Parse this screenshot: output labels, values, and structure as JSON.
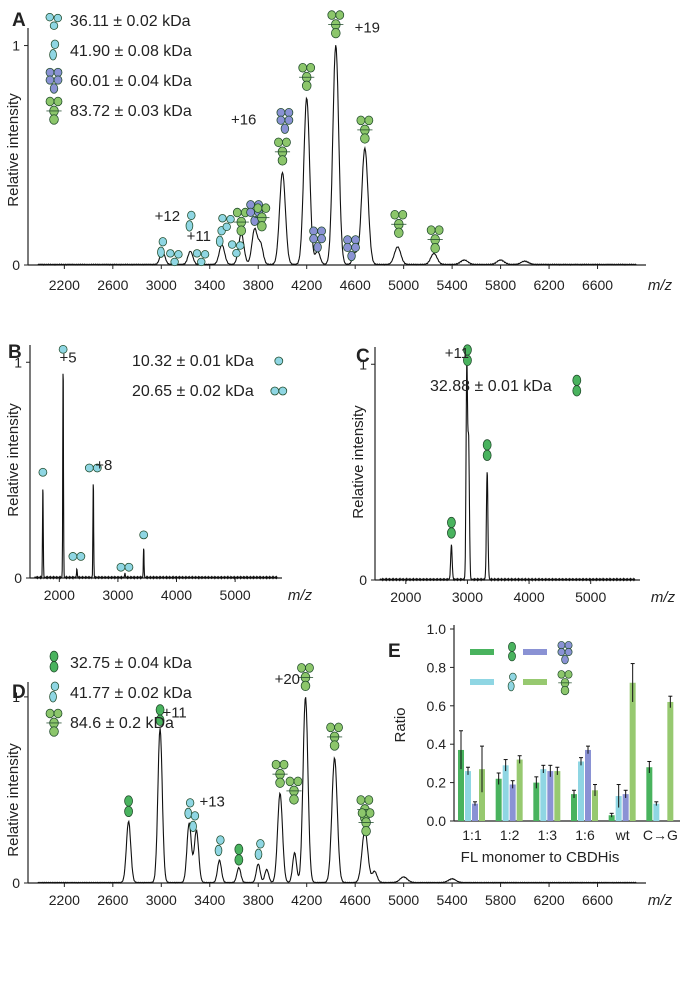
{
  "colors": {
    "cyan": "#8fd6e3",
    "green": "#8cc66b",
    "dark_green": "#49b35e",
    "purple": "#8a92d4",
    "axis": "#222222"
  },
  "chart_data": [
    {
      "panel": "A",
      "type": "line",
      "xlabel": "m/z",
      "ylabel": "Relative intensity",
      "xlim": [
        1900,
        7000
      ],
      "ylim": [
        0,
        1.08
      ],
      "xticks": [
        2200,
        2600,
        3000,
        3400,
        3800,
        4200,
        4600,
        5000,
        5400,
        5800,
        6200,
        6600
      ],
      "yticks": [
        {
          "v": 0,
          "label": "0"
        },
        {
          "v": 1,
          "label": "1"
        }
      ],
      "legend": [
        {
          "text": "36.11 ± 0.02 kDa",
          "icon": "cyan-trimer"
        },
        {
          "text": "41.90 ± 0.08 kDa",
          "icon": "cyan-dimer"
        },
        {
          "text": "60.01 ± 0.04 kDa",
          "icon": "purple-tetramer"
        },
        {
          "text": "83.72 ± 0.03 kDa",
          "icon": "green-tetramer"
        }
      ],
      "peaks": [
        {
          "mz": 3010,
          "h": 0.06,
          "w": 20
        },
        {
          "mz": 3240,
          "h": 0.06,
          "w": 20
        },
        {
          "mz": 3500,
          "h": 0.09,
          "w": 22
        },
        {
          "mz": 3660,
          "h": 0.14,
          "w": 22
        },
        {
          "mz": 3770,
          "h": 0.16,
          "w": 22
        },
        {
          "mz": 3820,
          "h": 0.09,
          "w": 20
        },
        {
          "mz": 4000,
          "h": 0.42,
          "w": 24
        },
        {
          "mz": 4200,
          "h": 0.76,
          "w": 24
        },
        {
          "mz": 4290,
          "h": 0.06,
          "w": 20
        },
        {
          "mz": 4440,
          "h": 1.0,
          "w": 24
        },
        {
          "mz": 4600,
          "h": 0.05,
          "w": 20
        },
        {
          "mz": 4680,
          "h": 0.53,
          "w": 26
        },
        {
          "mz": 4950,
          "h": 0.08,
          "w": 26
        },
        {
          "mz": 5250,
          "h": 0.05,
          "w": 26
        },
        {
          "mz": 5500,
          "h": 0.02,
          "w": 30
        },
        {
          "mz": 5800,
          "h": 0.02,
          "w": 30
        },
        {
          "mz": 6000,
          "h": 0.015,
          "w": 30
        }
      ],
      "annotations": [
        {
          "text": "+12",
          "mz": 3050,
          "y": 0.2
        },
        {
          "text": "+11",
          "mz": 3310,
          "y": 0.11
        },
        {
          "text": "+16",
          "mz": 3680,
          "y": 0.64
        },
        {
          "text": "+19",
          "mz": 4700,
          "y": 1.06
        }
      ],
      "markers": [
        {
          "icon": "cyan-dimer",
          "mz": 3005,
          "y": 0.08
        },
        {
          "icon": "cyan-trimer",
          "mz": 3110,
          "y": 0.04
        },
        {
          "icon": "cyan-dimer",
          "mz": 3240,
          "y": 0.2
        },
        {
          "icon": "cyan-trimer",
          "mz": 3330,
          "y": 0.04
        },
        {
          "icon": "cyan-dimer",
          "mz": 3490,
          "y": 0.13
        },
        {
          "icon": "cyan-trimer",
          "mz": 3540,
          "y": 0.2
        },
        {
          "icon": "cyan-trimer",
          "mz": 3620,
          "y": 0.08
        },
        {
          "icon": "green-tetramer",
          "mz": 3660,
          "y": 0.2
        },
        {
          "icon": "purple-tetramer",
          "mz": 3770,
          "y": 0.24
        },
        {
          "icon": "green-tetramer",
          "mz": 3830,
          "y": 0.22
        },
        {
          "icon": "green-tetramer",
          "mz": 4000,
          "y": 0.52
        },
        {
          "icon": "purple-tetramer",
          "mz": 4020,
          "y": 0.66
        },
        {
          "icon": "green-tetramer",
          "mz": 4200,
          "y": 0.86
        },
        {
          "icon": "purple-tetramer",
          "mz": 4290,
          "y": 0.12
        },
        {
          "icon": "green-tetramer",
          "mz": 4440,
          "y": 1.1
        },
        {
          "icon": "purple-tetramer",
          "mz": 4570,
          "y": 0.08
        },
        {
          "icon": "green-tetramer",
          "mz": 4680,
          "y": 0.62
        },
        {
          "icon": "green-tetramer",
          "mz": 4960,
          "y": 0.19
        },
        {
          "icon": "green-tetramer",
          "mz": 5260,
          "y": 0.12
        }
      ]
    },
    {
      "panel": "B",
      "type": "line",
      "xlabel": "m/z",
      "ylabel": "Relative intensity",
      "xlim": [
        1500,
        5800
      ],
      "ylim": [
        0,
        1.08
      ],
      "xticks": [
        2000,
        3000,
        4000,
        5000
      ],
      "yticks": [
        {
          "v": 0,
          "label": "0"
        },
        {
          "v": 1,
          "label": "1"
        }
      ],
      "legend": [
        {
          "text": "10.32 ± 0.01 kDa",
          "icon": "cyan-monomer"
        },
        {
          "text": "20.65 ± 0.02 kDa",
          "icon": "cyan-dimer-h"
        }
      ],
      "peaks": [
        {
          "mz": 1720,
          "h": 0.43,
          "w": 6
        },
        {
          "mz": 2065,
          "h": 1.0,
          "w": 6
        },
        {
          "mz": 2300,
          "h": 0.04,
          "w": 6
        },
        {
          "mz": 2580,
          "h": 0.45,
          "w": 6
        },
        {
          "mz": 3120,
          "h": 0.02,
          "w": 6
        },
        {
          "mz": 3440,
          "h": 0.14,
          "w": 6
        }
      ],
      "annotations": [
        {
          "text": "+5",
          "mz": 2150,
          "y": 1.0
        },
        {
          "text": "+8",
          "mz": 2760,
          "y": 0.5
        }
      ],
      "markers": [
        {
          "icon": "cyan-monomer",
          "mz": 1720,
          "y": 0.49
        },
        {
          "icon": "cyan-monomer",
          "mz": 2065,
          "y": 1.06
        },
        {
          "icon": "cyan-dimer-h",
          "mz": 2300,
          "y": 0.1
        },
        {
          "icon": "cyan-dimer-h",
          "mz": 2580,
          "y": 0.51
        },
        {
          "icon": "cyan-dimer-h",
          "mz": 3120,
          "y": 0.05
        },
        {
          "icon": "cyan-monomer",
          "mz": 3440,
          "y": 0.2
        }
      ]
    },
    {
      "panel": "C",
      "type": "line",
      "xlabel": "m/z",
      "ylabel": "Relative intensity",
      "xlim": [
        1500,
        5800
      ],
      "ylim": [
        0,
        1.08
      ],
      "xticks": [
        2000,
        3000,
        4000,
        5000
      ],
      "yticks": [
        {
          "v": 0,
          "label": "0"
        },
        {
          "v": 1,
          "label": "1"
        }
      ],
      "legend": [
        {
          "text": "32.88 ± 0.01 kDa",
          "icon": "green-monomer"
        }
      ],
      "peaks": [
        {
          "mz": 2740,
          "h": 0.16,
          "w": 12
        },
        {
          "mz": 2990,
          "h": 1.0,
          "w": 12
        },
        {
          "mz": 3020,
          "h": 0.62,
          "w": 12
        },
        {
          "mz": 3320,
          "h": 0.5,
          "w": 12
        }
      ],
      "annotations": [
        {
          "text": "+11",
          "mz": 2830,
          "y": 1.03
        }
      ],
      "markers": [
        {
          "icon": "green-monomer",
          "mz": 2740,
          "y": 0.24
        },
        {
          "icon": "green-monomer",
          "mz": 3000,
          "y": 1.04
        },
        {
          "icon": "green-monomer",
          "mz": 3320,
          "y": 0.6
        }
      ]
    },
    {
      "panel": "D",
      "type": "line",
      "xlabel": "m/z",
      "ylabel": "Relative intensity",
      "xlim": [
        1900,
        7000
      ],
      "ylim": [
        0,
        1.08
      ],
      "xticks": [
        2200,
        2600,
        3000,
        3400,
        3800,
        4200,
        4600,
        5000,
        5400,
        5800,
        6200,
        6600
      ],
      "yticks": [
        {
          "v": 0,
          "label": "0"
        },
        {
          "v": 1,
          "label": "1"
        }
      ],
      "legend": [
        {
          "text": "32.75 ± 0.04 kDa",
          "icon": "green-monomer"
        },
        {
          "text": "41.77 ± 0.02 kDa",
          "icon": "cyan-dimer"
        },
        {
          "text": "84.6   ± 0.2   kDa",
          "icon": "green-tetramer"
        }
      ],
      "peaks": [
        {
          "mz": 2730,
          "h": 0.33,
          "w": 18
        },
        {
          "mz": 2990,
          "h": 0.83,
          "w": 18
        },
        {
          "mz": 3230,
          "h": 0.32,
          "w": 18
        },
        {
          "mz": 3290,
          "h": 0.28,
          "w": 18
        },
        {
          "mz": 3480,
          "h": 0.12,
          "w": 16
        },
        {
          "mz": 3640,
          "h": 0.08,
          "w": 16
        },
        {
          "mz": 3800,
          "h": 0.1,
          "w": 16
        },
        {
          "mz": 3870,
          "h": 0.07,
          "w": 16
        },
        {
          "mz": 3980,
          "h": 0.48,
          "w": 20
        },
        {
          "mz": 4100,
          "h": 0.16,
          "w": 16
        },
        {
          "mz": 4190,
          "h": 1.0,
          "w": 20
        },
        {
          "mz": 4430,
          "h": 0.67,
          "w": 22
        },
        {
          "mz": 4680,
          "h": 0.28,
          "w": 24
        },
        {
          "mz": 4760,
          "h": 0.06,
          "w": 20
        },
        {
          "mz": 5000,
          "h": 0.03,
          "w": 30
        },
        {
          "mz": 5400,
          "h": 0.02,
          "w": 30
        }
      ],
      "annotations": [
        {
          "text": "+11",
          "mz": 3110,
          "y": 0.89
        },
        {
          "text": "+13",
          "mz": 3420,
          "y": 0.41
        },
        {
          "text": "+20",
          "mz": 4040,
          "y": 1.07
        }
      ],
      "markers": [
        {
          "icon": "green-monomer",
          "mz": 2730,
          "y": 0.41
        },
        {
          "icon": "green-monomer",
          "mz": 2990,
          "y": 0.9
        },
        {
          "icon": "cyan-dimer",
          "mz": 3230,
          "y": 0.4
        },
        {
          "icon": "cyan-dimer",
          "mz": 3270,
          "y": 0.33
        },
        {
          "icon": "cyan-dimer",
          "mz": 3480,
          "y": 0.2
        },
        {
          "icon": "green-monomer",
          "mz": 3640,
          "y": 0.15
        },
        {
          "icon": "cyan-dimer",
          "mz": 3810,
          "y": 0.18
        },
        {
          "icon": "green-tetramer",
          "mz": 3980,
          "y": 0.59
        },
        {
          "icon": "green-tetramer",
          "mz": 4095,
          "y": 0.5
        },
        {
          "icon": "green-tetramer",
          "mz": 4190,
          "y": 1.11
        },
        {
          "icon": "green-tetramer",
          "mz": 4430,
          "y": 0.79
        },
        {
          "icon": "green-tetramer",
          "mz": 4680,
          "y": 0.4
        },
        {
          "icon": "green-tetramer",
          "mz": 4690,
          "y": 0.33
        }
      ]
    },
    {
      "panel": "E",
      "type": "bar",
      "ylabel": "Ratio",
      "xlabel": "FL monomer to CBDHis",
      "ylim": [
        0,
        1.0
      ],
      "yticks": [
        {
          "v": 0,
          "label": "0.0"
        },
        {
          "v": 0.2,
          "label": "0.2"
        },
        {
          "v": 0.4,
          "label": "0.4"
        },
        {
          "v": 0.6,
          "label": "0.6"
        },
        {
          "v": 0.8,
          "label": "0.8"
        },
        {
          "v": 1.0,
          "label": "1.0"
        }
      ],
      "categories": [
        "1:1",
        "1:2",
        "1:3",
        "1:6",
        "wt",
        "C→G"
      ],
      "series": [
        {
          "icon": "green-monomer",
          "color": "#49b35e",
          "values": [
            0.37,
            0.22,
            0.2,
            0.14,
            0.03,
            0.28
          ],
          "errors": [
            0.1,
            0.03,
            0.03,
            0.02,
            0.01,
            0.03
          ]
        },
        {
          "icon": "cyan-dimer",
          "color": "#8fd6e3",
          "values": [
            0.26,
            0.29,
            0.27,
            0.31,
            0.13,
            0.09
          ],
          "errors": [
            0.02,
            0.03,
            0.02,
            0.02,
            0.06,
            0.01
          ]
        },
        {
          "icon": "purple-tetramer",
          "color": "#8a92d4",
          "values": [
            0.09,
            0.19,
            0.26,
            0.37,
            0.14,
            0.0
          ],
          "errors": [
            0.01,
            0.02,
            0.03,
            0.02,
            0.02,
            0.0
          ]
        },
        {
          "icon": "green-tetramer",
          "color": "#97c970",
          "values": [
            0.27,
            0.32,
            0.26,
            0.16,
            0.72,
            0.62
          ],
          "errors": [
            0.12,
            0.02,
            0.02,
            0.03,
            0.1,
            0.03
          ]
        }
      ]
    }
  ]
}
